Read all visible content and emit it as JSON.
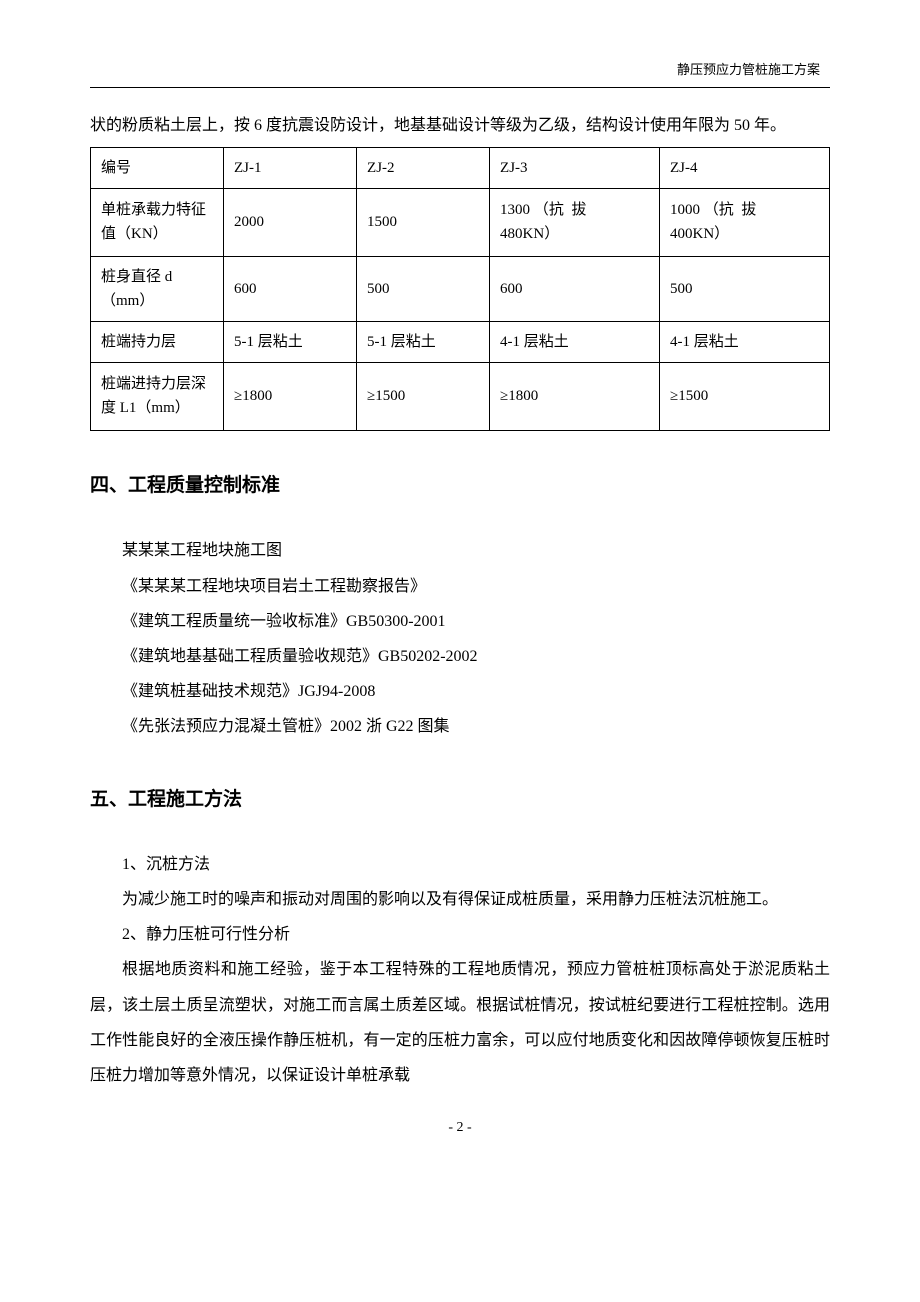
{
  "header": {
    "doc_title": "静压预应力管桩施工方案"
  },
  "intro_para": "状的粉质粘土层上，按 6 度抗震设防设计，地基基础设计等级为乙级，结构设计使用年限为 50 年。",
  "table": {
    "rows": [
      {
        "label": "编号",
        "c1": "ZJ-1",
        "c2": "ZJ-2",
        "c3": "ZJ-3",
        "c4": "ZJ-4",
        "tall": false
      },
      {
        "label": "单桩承载力特征值（KN）",
        "c1": "2000",
        "c2": "1500",
        "c3_pre": "1300 （",
        "c3_sp": "抗拔",
        "c3_post": "480KN）",
        "c4_pre": "1000 （",
        "c4_sp": "抗拔",
        "c4_post": "400KN）",
        "tall": true,
        "multiline": true
      },
      {
        "label": "桩身直径 d（mm）",
        "c1": "600",
        "c2": "500",
        "c3": "600",
        "c4": "500",
        "tall": false
      },
      {
        "label": "桩端持力层",
        "c1": "5-1 层粘土",
        "c2": "5-1 层粘土",
        "c3": "4-1 层粘土",
        "c4": "4-1 层粘土",
        "tall": false
      },
      {
        "label": "桩端进持力层深度 L1（mm）",
        "c1": "≥1800",
        "c2": "≥1500",
        "c3": "≥1800",
        "c4": "≥1500",
        "tall": true
      }
    ]
  },
  "section4": {
    "heading": "四、工程质量控制标准",
    "items": [
      "某某某工程地块施工图",
      "《某某某工程地块项目岩土工程勘察报告》",
      "《建筑工程质量统一验收标准》GB50300-2001",
      "《建筑地基基础工程质量验收规范》GB50202-2002",
      "《建筑桩基础技术规范》JGJ94-2008",
      "《先张法预应力混凝土管桩》2002 浙 G22 图集"
    ]
  },
  "section5": {
    "heading": "五、工程施工方法",
    "sub1_title": "1、沉桩方法",
    "sub1_body": "为减少施工时的噪声和振动对周围的影响以及有得保证成桩质量，采用静力压桩法沉桩施工。",
    "sub2_title": "2、静力压桩可行性分析",
    "sub2_body": "根据地质资料和施工经验，鉴于本工程特殊的工程地质情况，预应力管桩桩顶标高处于淤泥质粘土层，该土层土质呈流塑状，对施工而言属土质差区域。根据试桩情况，按试桩纪要进行工程桩控制。选用工作性能良好的全液压操作静压桩机，有一定的压桩力富余，可以应付地质变化和因故障停顿恢复压桩时压桩力增加等意外情况，以保证设计单桩承载"
  },
  "page_number": "- 2 -"
}
